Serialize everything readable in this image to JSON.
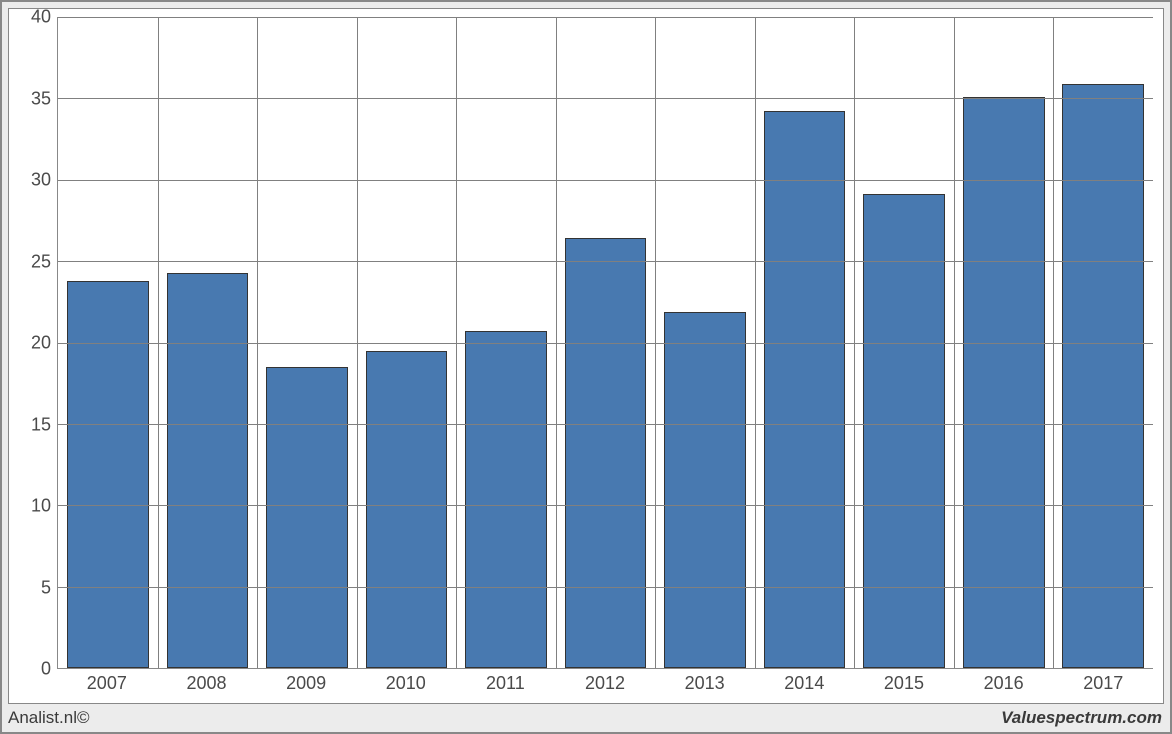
{
  "chart": {
    "type": "bar",
    "categories": [
      "2007",
      "2008",
      "2009",
      "2010",
      "2011",
      "2012",
      "2013",
      "2014",
      "2015",
      "2016",
      "2017"
    ],
    "values": [
      23.8,
      24.3,
      18.5,
      19.5,
      20.7,
      26.4,
      21.9,
      34.2,
      29.1,
      35.1,
      35.9
    ],
    "bar_color": "#4879b0",
    "bar_border_color": "#333333",
    "ylim": [
      0,
      40
    ],
    "ytick_step": 5,
    "yticks": [
      0,
      5,
      10,
      15,
      20,
      25,
      30,
      35,
      40
    ],
    "grid_color": "#808080",
    "background_color": "#ffffff",
    "outer_background_color": "#ececec",
    "border_color": "#888888",
    "label_fontsize": 18,
    "label_color": "#4a4a4a",
    "bar_width_ratio": 0.82
  },
  "footer": {
    "left": "Analist.nl©",
    "right": "Valuespectrum.com"
  }
}
